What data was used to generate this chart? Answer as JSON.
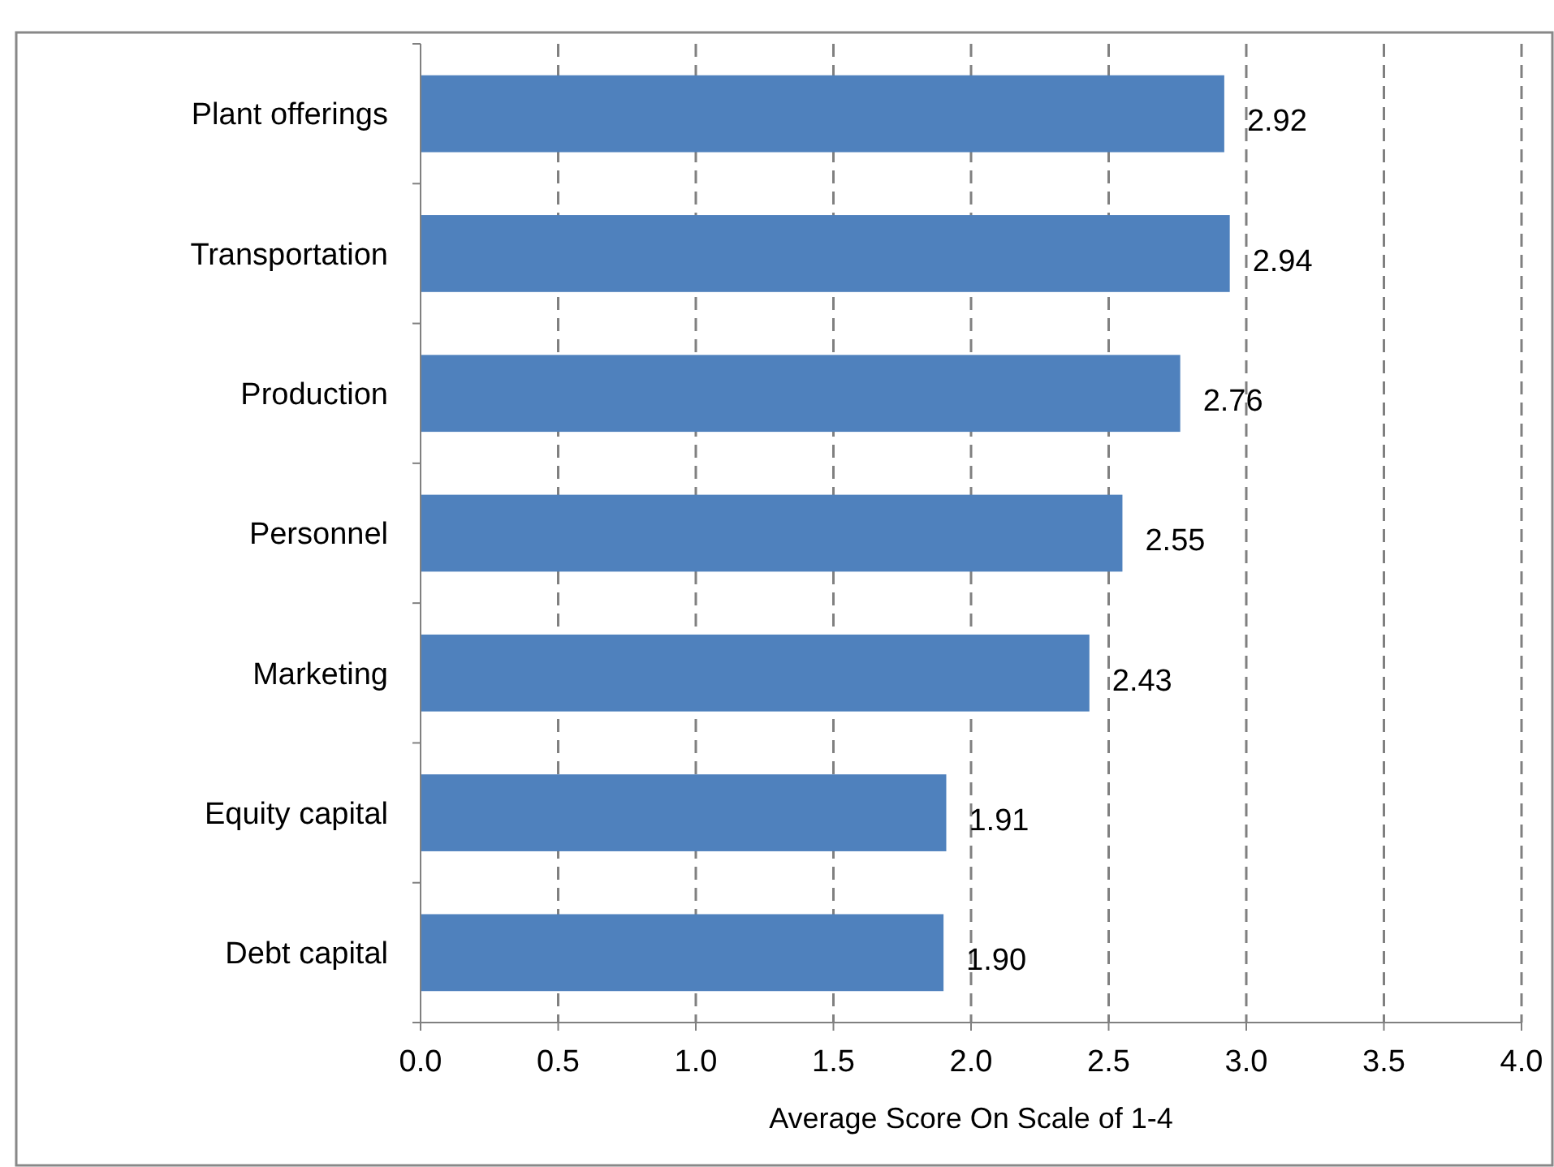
{
  "chart_data": {
    "type": "bar",
    "orientation": "horizontal",
    "xlabel": "Average Score On Scale of 1-4",
    "categories": [
      "Plant offerings",
      "Transportation",
      "Production",
      "Personnel",
      "Marketing",
      "Equity capital",
      "Debt capital"
    ],
    "values": [
      2.92,
      2.94,
      2.76,
      2.55,
      2.43,
      1.91,
      1.9
    ],
    "value_labels": [
      "2.92",
      "2.94",
      "2.76",
      "2.55",
      "2.43",
      "1.91",
      "1.90"
    ],
    "color": "#4f81bd",
    "xlim": [
      0,
      4
    ],
    "xticks": [
      {
        "value": 0,
        "label": "0.0"
      },
      {
        "value": 0.5,
        "label": "0.5"
      },
      {
        "value": 1,
        "label": "1.0"
      },
      {
        "value": 1.5,
        "label": "1.5"
      },
      {
        "value": 2,
        "label": "2.0"
      },
      {
        "value": 2.5,
        "label": "2.5"
      },
      {
        "value": 3,
        "label": "3.0"
      },
      {
        "value": 3.5,
        "label": "3.5"
      },
      {
        "value": 4,
        "label": "4.0"
      }
    ],
    "grid": "x"
  }
}
